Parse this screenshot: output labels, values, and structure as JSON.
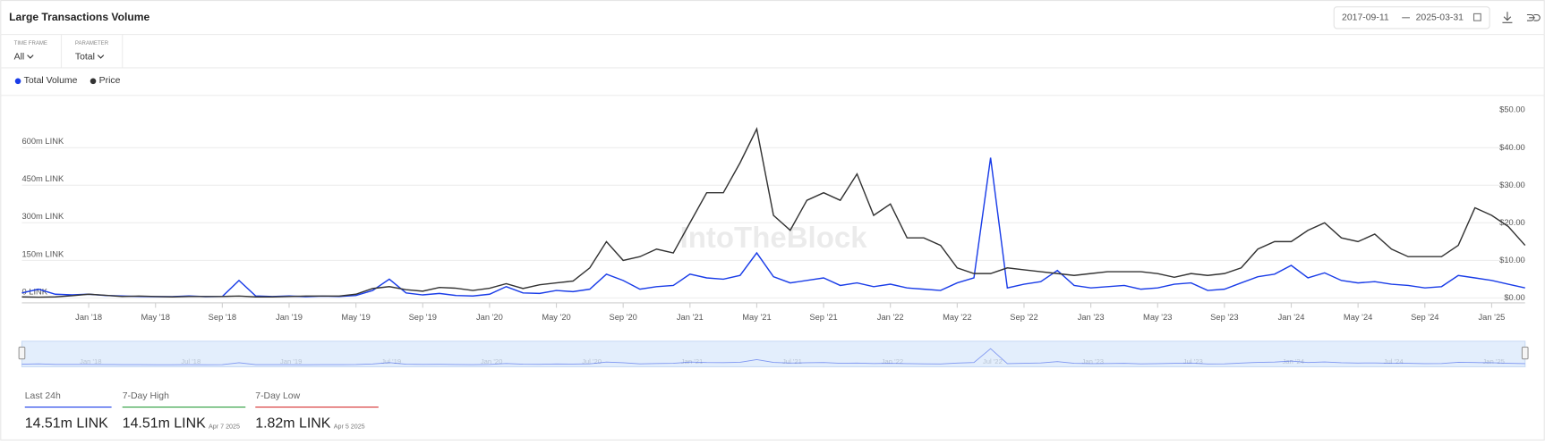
{
  "header": {
    "title": "Large Transactions Volume",
    "date_from": "2017-09-11",
    "date_to": "2025-03-31"
  },
  "controls": [
    {
      "label": "TIME FRAME",
      "value": "All"
    },
    {
      "label": "PARAMETER",
      "value": "Total"
    }
  ],
  "chart_data": {
    "type": "line",
    "x": [
      "2017-09",
      "2017-10",
      "2017-11",
      "2017-12",
      "2018-01",
      "2018-02",
      "2018-03",
      "2018-04",
      "2018-05",
      "2018-06",
      "2018-07",
      "2018-08",
      "2018-09",
      "2018-10",
      "2018-11",
      "2018-12",
      "2019-01",
      "2019-02",
      "2019-03",
      "2019-04",
      "2019-05",
      "2019-06",
      "2019-07",
      "2019-08",
      "2019-09",
      "2019-10",
      "2019-11",
      "2019-12",
      "2020-01",
      "2020-02",
      "2020-03",
      "2020-04",
      "2020-05",
      "2020-06",
      "2020-07",
      "2020-08",
      "2020-09",
      "2020-10",
      "2020-11",
      "2020-12",
      "2021-01",
      "2021-02",
      "2021-03",
      "2021-04",
      "2021-05",
      "2021-06",
      "2021-07",
      "2021-08",
      "2021-09",
      "2021-10",
      "2021-11",
      "2021-12",
      "2022-01",
      "2022-02",
      "2022-03",
      "2022-04",
      "2022-05",
      "2022-06",
      "2022-07",
      "2022-08",
      "2022-09",
      "2022-10",
      "2022-11",
      "2022-12",
      "2023-01",
      "2023-02",
      "2023-03",
      "2023-04",
      "2023-05",
      "2023-06",
      "2023-07",
      "2023-08",
      "2023-09",
      "2023-10",
      "2023-11",
      "2023-12",
      "2024-01",
      "2024-02",
      "2024-03",
      "2024-04",
      "2024-05",
      "2024-06",
      "2024-07",
      "2024-08",
      "2024-09",
      "2024-10",
      "2024-11",
      "2024-12",
      "2025-01",
      "2025-02",
      "2025-03"
    ],
    "series": [
      {
        "name": "Total Volume",
        "color": "#1a3de8",
        "values": [
          20000000,
          35000000,
          15000000,
          12000000,
          15000000,
          10000000,
          8000000,
          6000000,
          5000000,
          5000000,
          8000000,
          5000000,
          6000000,
          70000000,
          8000000,
          6000000,
          8000000,
          5000000,
          7000000,
          6000000,
          10000000,
          30000000,
          75000000,
          20000000,
          12000000,
          18000000,
          10000000,
          8000000,
          15000000,
          45000000,
          20000000,
          18000000,
          30000000,
          25000000,
          35000000,
          95000000,
          70000000,
          35000000,
          45000000,
          50000000,
          95000000,
          80000000,
          75000000,
          90000000,
          180000000,
          85000000,
          60000000,
          70000000,
          80000000,
          50000000,
          60000000,
          45000000,
          55000000,
          40000000,
          35000000,
          30000000,
          60000000,
          80000000,
          560000000,
          40000000,
          55000000,
          65000000,
          110000000,
          50000000,
          40000000,
          45000000,
          50000000,
          35000000,
          40000000,
          55000000,
          60000000,
          30000000,
          35000000,
          60000000,
          85000000,
          95000000,
          130000000,
          80000000,
          100000000,
          70000000,
          60000000,
          65000000,
          55000000,
          50000000,
          40000000,
          45000000,
          90000000,
          80000000,
          70000000,
          55000000,
          40000000
        ]
      },
      {
        "name": "Price",
        "color": "#333333",
        "axis": "y2",
        "values": [
          0.3,
          0.2,
          0.3,
          0.6,
          1.0,
          0.7,
          0.4,
          0.5,
          0.4,
          0.3,
          0.4,
          0.4,
          0.4,
          0.5,
          0.3,
          0.3,
          0.4,
          0.5,
          0.5,
          0.5,
          1.0,
          2.5,
          3.0,
          2.2,
          1.8,
          2.8,
          2.6,
          2.0,
          2.6,
          3.8,
          2.5,
          3.5,
          4.0,
          4.5,
          8,
          15,
          10,
          11,
          13,
          12,
          20,
          28,
          28,
          36,
          45,
          22,
          18,
          26,
          28,
          26,
          33,
          22,
          25,
          16,
          16,
          14,
          8,
          6.5,
          6.5,
          8,
          7.5,
          7,
          6.5,
          6,
          6.5,
          7,
          7,
          7,
          6.5,
          5.5,
          6.5,
          6,
          6.5,
          8,
          13,
          15,
          15,
          18,
          20,
          16,
          15,
          17,
          13,
          11,
          11,
          11,
          14,
          24,
          22,
          19,
          14
        ]
      }
    ],
    "xlim": [
      "2017-09",
      "2025-03"
    ],
    "xticks": [
      {
        "value": "2018-01",
        "label": "Jan '18"
      },
      {
        "value": "2018-05",
        "label": "May '18"
      },
      {
        "value": "2018-09",
        "label": "Sep '18"
      },
      {
        "value": "2019-01",
        "label": "Jan '19"
      },
      {
        "value": "2019-05",
        "label": "May '19"
      },
      {
        "value": "2019-09",
        "label": "Sep '19"
      },
      {
        "value": "2020-01",
        "label": "Jan '20"
      },
      {
        "value": "2020-05",
        "label": "May '20"
      },
      {
        "value": "2020-09",
        "label": "Sep '20"
      },
      {
        "value": "2021-01",
        "label": "Jan '21"
      },
      {
        "value": "2021-05",
        "label": "May '21"
      },
      {
        "value": "2021-09",
        "label": "Sep '21"
      },
      {
        "value": "2022-01",
        "label": "Jan '22"
      },
      {
        "value": "2022-05",
        "label": "May '22"
      },
      {
        "value": "2022-09",
        "label": "Sep '22"
      },
      {
        "value": "2023-01",
        "label": "Jan '23"
      },
      {
        "value": "2023-05",
        "label": "May '23"
      },
      {
        "value": "2023-09",
        "label": "Sep '23"
      },
      {
        "value": "2024-01",
        "label": "Jan '24"
      },
      {
        "value": "2024-05",
        "label": "May '24"
      },
      {
        "value": "2024-09",
        "label": "Sep '24"
      },
      {
        "value": "2025-01",
        "label": "Jan '25"
      }
    ],
    "ylim": [
      0,
      750000000
    ],
    "yticks": [
      {
        "value": 0,
        "label": "0 LINK"
      },
      {
        "value": 150000000,
        "label": "150m LINK"
      },
      {
        "value": 300000000,
        "label": "300m LINK"
      },
      {
        "value": 450000000,
        "label": "450m LINK"
      },
      {
        "value": 600000000,
        "label": "600m LINK"
      }
    ],
    "y2lim": [
      0,
      50
    ],
    "y2ticks": [
      {
        "value": 0,
        "label": "$0.00"
      },
      {
        "value": 10,
        "label": "$10.00"
      },
      {
        "value": 20,
        "label": "$20.00"
      },
      {
        "value": 30,
        "label": "$30.00"
      },
      {
        "value": 40,
        "label": "$40.00"
      },
      {
        "value": 50,
        "label": "$50.00"
      }
    ],
    "grid": true,
    "legend": "top-left",
    "watermark": "IntoTheBlock"
  },
  "navigator": {
    "ticks": [
      {
        "value": "2018-01",
        "label": "Jan '18"
      },
      {
        "value": "2018-07",
        "label": "Jul '18"
      },
      {
        "value": "2019-01",
        "label": "Jan '19"
      },
      {
        "value": "2019-07",
        "label": "Jul '19"
      },
      {
        "value": "2020-01",
        "label": "Jan '20"
      },
      {
        "value": "2020-07",
        "label": "Jul '20"
      },
      {
        "value": "2021-01",
        "label": "Jan '21"
      },
      {
        "value": "2021-07",
        "label": "Jul '21"
      },
      {
        "value": "2022-01",
        "label": "Jan '22"
      },
      {
        "value": "2022-07",
        "label": "Jul '22"
      },
      {
        "value": "2023-01",
        "label": "Jan '23"
      },
      {
        "value": "2023-07",
        "label": "Jul '23"
      },
      {
        "value": "2024-01",
        "label": "Jan '24"
      },
      {
        "value": "2024-07",
        "label": "Jul '24"
      },
      {
        "value": "2025-01",
        "label": "Jan '25"
      }
    ]
  },
  "stats": [
    {
      "label": "Last 24h",
      "value": "14.51m LINK",
      "color": "#1a3de8"
    },
    {
      "label": "7-Day High",
      "value": "14.51m LINK",
      "date": "Apr 7 2025",
      "color": "#2e9e3e"
    },
    {
      "label": "7-Day Low",
      "value": "1.82m LINK",
      "date": "Apr 5 2025",
      "color": "#d63333"
    }
  ]
}
